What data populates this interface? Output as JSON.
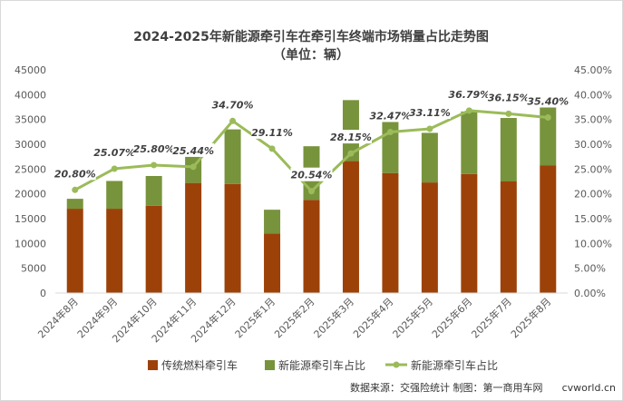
{
  "chart_data": {
    "type": "bar",
    "stacked": true,
    "title": "2024-2025年新能源牵引车在牵引车终端市场销量占比走势图",
    "subtitle": "（单位：辆）",
    "categories": [
      "2024年8月",
      "2024年9月",
      "2024年10月",
      "2024年11月",
      "2024年12月",
      "2025年1月",
      "2025年2月",
      "2025年3月",
      "2025年4月",
      "2025年5月",
      "2025年6月",
      "2025年7月",
      "2025年8月"
    ],
    "series": [
      {
        "name": "传统燃料牵引车",
        "type": "bar",
        "axis": "left",
        "color": "#9c4209",
        "values": [
          17000,
          17000,
          17600,
          22200,
          22000,
          12000,
          18800,
          26600,
          24200,
          22300,
          24000,
          22500,
          25700
        ]
      },
      {
        "name": "新能源牵引车占比",
        "type": "bar",
        "axis": "left",
        "color": "#77933c",
        "values": [
          2000,
          5600,
          6000,
          7600,
          11000,
          4800,
          10800,
          12300,
          11500,
          10000,
          12600,
          12800,
          13900
        ]
      },
      {
        "name": "新能源牵引车占比",
        "type": "line",
        "axis": "right",
        "color": "#9bbb59",
        "values": [
          20.8,
          25.07,
          25.8,
          25.44,
          34.7,
          29.11,
          20.54,
          28.15,
          32.47,
          33.11,
          36.79,
          36.15,
          35.4
        ],
        "labels": [
          "20.80%",
          "25.07%",
          "25.80%",
          "25.44%",
          "34.70%",
          "29.11%",
          "20.54%",
          "28.15%",
          "32.47%",
          "33.11%",
          "36.79%",
          "36.15%",
          "35.40%"
        ]
      }
    ],
    "y_left": {
      "min": 0,
      "max": 45000,
      "step": 5000,
      "ticks": [
        "0",
        "5000",
        "10000",
        "15000",
        "20000",
        "25000",
        "30000",
        "35000",
        "40000",
        "45000"
      ]
    },
    "y_right": {
      "min": 0,
      "max": 45,
      "step": 5,
      "ticks": [
        "0.00%",
        "5.00%",
        "10.00%",
        "15.00%",
        "20.00%",
        "25.00%",
        "30.00%",
        "35.00%",
        "40.00%",
        "45.00%"
      ]
    },
    "grid": false,
    "legend_position": "bottom"
  },
  "footer": {
    "source": "数据来源：交强险统计  制图：第一商用车网",
    "watermark": "cvworld.cn"
  }
}
